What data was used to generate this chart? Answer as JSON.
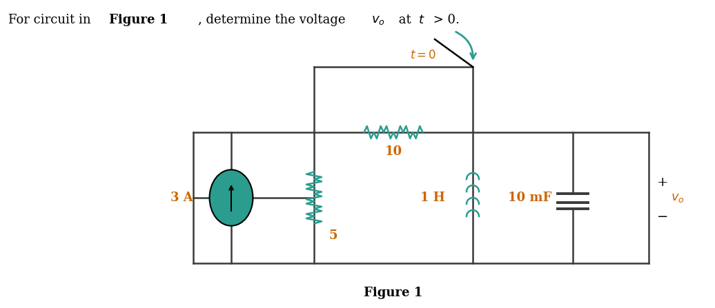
{
  "figure_label": "Figure 1",
  "component_color": "#2a9d8f",
  "wire_color": "#3a3a3a",
  "bg_color": "#ffffff",
  "label_3A": "3 A",
  "label_5": "5",
  "label_10": "10",
  "label_1H": "1 H",
  "label_10mF": "10 mF",
  "label_t0": "t = 0",
  "plus": "+",
  "minus": "−",
  "text_color": "#cc6600",
  "title_fontsize": 13,
  "label_fontsize": 13
}
